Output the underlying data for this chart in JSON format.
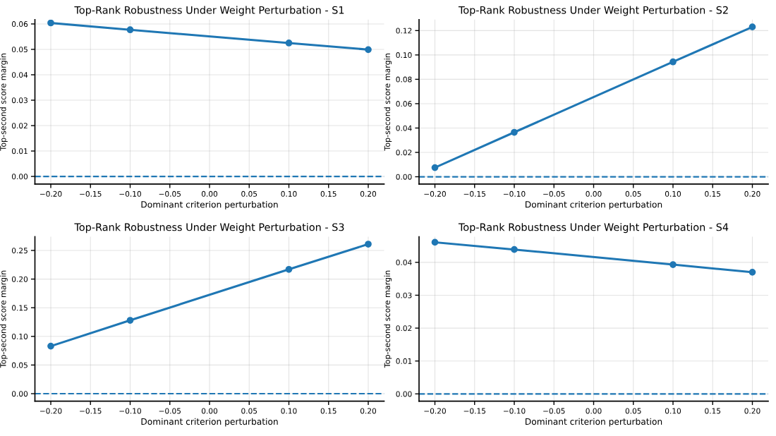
{
  "chart_data": [
    {
      "type": "line",
      "title": "Top-Rank Robustness Under Weight Perturbation - S1",
      "xlabel": "Dominant criterion perturbation",
      "ylabel": "Top-second score margin",
      "x": [
        -0.2,
        -0.1,
        0.1,
        0.2
      ],
      "series": [
        {
          "color": "#1f77b4",
          "values": [
            0.0604,
            0.0577,
            0.0525,
            0.0499
          ]
        }
      ],
      "xlim": [
        -0.22,
        0.22
      ],
      "xticks": [
        {
          "value": -0.2,
          "label": "−0.20"
        },
        {
          "value": -0.15,
          "label": "−0.15"
        },
        {
          "value": -0.1,
          "label": "−0.10"
        },
        {
          "value": -0.05,
          "label": "−0.05"
        },
        {
          "value": 0,
          "label": "0.00"
        },
        {
          "value": 0.05,
          "label": "0.05"
        },
        {
          "value": 0.1,
          "label": "0.10"
        },
        {
          "value": 0.15,
          "label": "0.15"
        },
        {
          "value": 0.2,
          "label": "0.20"
        }
      ],
      "ylim": [
        -0.003,
        0.0617
      ],
      "yticks": [
        {
          "value": 0,
          "label": "0.00"
        },
        {
          "value": 0.01,
          "label": "0.01"
        },
        {
          "value": 0.02,
          "label": "0.02"
        },
        {
          "value": 0.03,
          "label": "0.03"
        },
        {
          "value": 0.04,
          "label": "0.04"
        },
        {
          "value": 0.05,
          "label": "0.05"
        },
        {
          "value": 0.06,
          "label": "0.06"
        }
      ],
      "ref_lines": [
        {
          "axis": "y",
          "value": 0,
          "color": "#1f77b4",
          "line_style": "dashed"
        }
      ],
      "grid": true,
      "marker": "circle",
      "line_style": "solid"
    },
    {
      "type": "line",
      "title": "Top-Rank Robustness Under Weight Perturbation - S2",
      "xlabel": "Dominant criterion perturbation",
      "ylabel": "Top-second score margin",
      "x": [
        -0.2,
        -0.1,
        0.1,
        0.2
      ],
      "series": [
        {
          "color": "#1f77b4",
          "values": [
            0.0075,
            0.0365,
            0.0943,
            0.123
          ]
        }
      ],
      "xlim": [
        -0.22,
        0.22
      ],
      "xticks": [
        {
          "value": -0.2,
          "label": "−0.20"
        },
        {
          "value": -0.15,
          "label": "−0.15"
        },
        {
          "value": -0.1,
          "label": "−0.10"
        },
        {
          "value": -0.05,
          "label": "−0.05"
        },
        {
          "value": 0,
          "label": "0.00"
        },
        {
          "value": 0.05,
          "label": "0.05"
        },
        {
          "value": 0.1,
          "label": "0.10"
        },
        {
          "value": 0.15,
          "label": "0.15"
        },
        {
          "value": 0.2,
          "label": "0.20"
        }
      ],
      "ylim": [
        -0.006,
        0.129
      ],
      "yticks": [
        {
          "value": 0,
          "label": "0.00"
        },
        {
          "value": 0.02,
          "label": "0.02"
        },
        {
          "value": 0.04,
          "label": "0.04"
        },
        {
          "value": 0.06,
          "label": "0.06"
        },
        {
          "value": 0.08,
          "label": "0.08"
        },
        {
          "value": 0.1,
          "label": "0.10"
        },
        {
          "value": 0.12,
          "label": "0.12"
        }
      ],
      "ref_lines": [
        {
          "axis": "y",
          "value": 0,
          "color": "#1f77b4",
          "line_style": "dashed"
        }
      ],
      "grid": true,
      "marker": "circle",
      "line_style": "solid"
    },
    {
      "type": "line",
      "title": "Top-Rank Robustness Under Weight Perturbation - S3",
      "xlabel": "Dominant criterion perturbation",
      "ylabel": "Top-second score margin",
      "x": [
        -0.2,
        -0.1,
        0.1,
        0.2
      ],
      "series": [
        {
          "color": "#1f77b4",
          "values": [
            0.083,
            0.128,
            0.217,
            0.261
          ]
        }
      ],
      "xlim": [
        -0.22,
        0.22
      ],
      "xticks": [
        {
          "value": -0.2,
          "label": "−0.20"
        },
        {
          "value": -0.15,
          "label": "−0.15"
        },
        {
          "value": -0.1,
          "label": "−0.10"
        },
        {
          "value": -0.05,
          "label": "−0.05"
        },
        {
          "value": 0,
          "label": "0.00"
        },
        {
          "value": 0.05,
          "label": "0.05"
        },
        {
          "value": 0.1,
          "label": "0.10"
        },
        {
          "value": 0.15,
          "label": "0.15"
        },
        {
          "value": 0.2,
          "label": "0.20"
        }
      ],
      "ylim": [
        -0.013,
        0.274
      ],
      "yticks": [
        {
          "value": 0,
          "label": "0.00"
        },
        {
          "value": 0.05,
          "label": "0.05"
        },
        {
          "value": 0.1,
          "label": "0.10"
        },
        {
          "value": 0.15,
          "label": "0.15"
        },
        {
          "value": 0.2,
          "label": "0.20"
        },
        {
          "value": 0.25,
          "label": "0.25"
        }
      ],
      "ref_lines": [
        {
          "axis": "y",
          "value": 0,
          "color": "#1f77b4",
          "line_style": "dashed"
        }
      ],
      "grid": true,
      "marker": "circle",
      "line_style": "solid"
    },
    {
      "type": "line",
      "title": "Top-Rank Robustness Under Weight Perturbation - S4",
      "xlabel": "Dominant criterion perturbation",
      "ylabel": "Top-second score margin",
      "x": [
        -0.2,
        -0.1,
        0.1,
        0.2
      ],
      "series": [
        {
          "color": "#1f77b4",
          "values": [
            0.0461,
            0.0439,
            0.0393,
            0.037
          ]
        }
      ],
      "xlim": [
        -0.22,
        0.22
      ],
      "xticks": [
        {
          "value": -0.2,
          "label": "−0.20"
        },
        {
          "value": -0.15,
          "label": "−0.15"
        },
        {
          "value": -0.1,
          "label": "−0.10"
        },
        {
          "value": -0.05,
          "label": "−0.05"
        },
        {
          "value": 0,
          "label": "0.00"
        },
        {
          "value": 0.05,
          "label": "0.05"
        },
        {
          "value": 0.1,
          "label": "0.10"
        },
        {
          "value": 0.15,
          "label": "0.15"
        },
        {
          "value": 0.2,
          "label": "0.20"
        }
      ],
      "ylim": [
        -0.0022,
        0.0478
      ],
      "yticks": [
        {
          "value": 0,
          "label": "0.00"
        },
        {
          "value": 0.01,
          "label": "0.01"
        },
        {
          "value": 0.02,
          "label": "0.02"
        },
        {
          "value": 0.03,
          "label": "0.03"
        },
        {
          "value": 0.04,
          "label": "0.04"
        }
      ],
      "ref_lines": [
        {
          "axis": "y",
          "value": 0,
          "color": "#1f77b4",
          "line_style": "dashed"
        }
      ],
      "grid": true,
      "marker": "circle",
      "line_style": "solid"
    }
  ]
}
